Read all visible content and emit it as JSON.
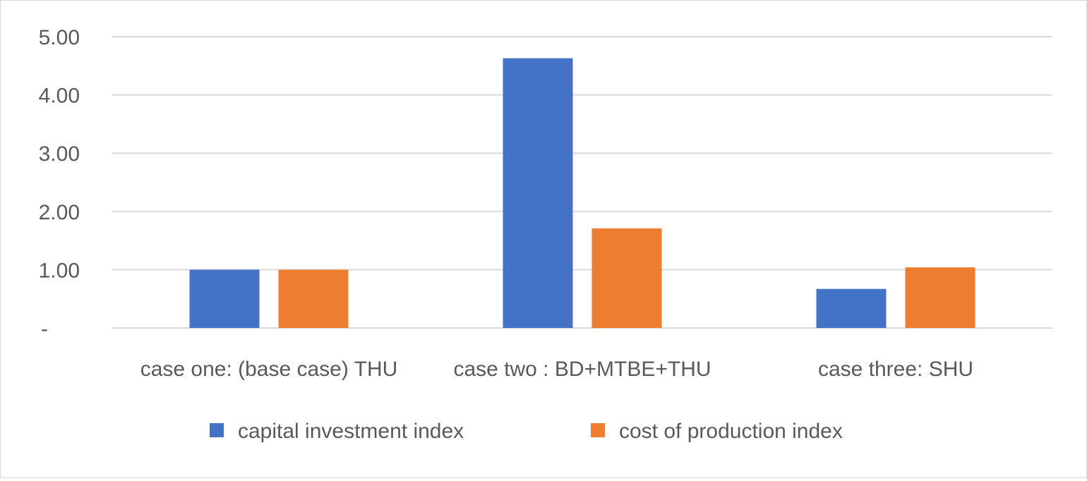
{
  "chart_data": {
    "type": "bar",
    "title": "",
    "xlabel": "",
    "ylabel": "",
    "categories": [
      "case one: (base case) THU",
      "case two : BD+MTBE+THU",
      "case three: SHU"
    ],
    "series": [
      {
        "name": "capital investment index",
        "color": "#4472C4",
        "values": [
          1.0,
          4.63,
          0.67
        ]
      },
      {
        "name": "cost of production index",
        "color": "#ED7D31",
        "values": [
          1.0,
          1.71,
          1.04
        ]
      }
    ],
    "ylim": [
      0,
      5
    ],
    "yticks": [
      0,
      1,
      2,
      3,
      4,
      5
    ],
    "ytick_labels": [
      "-",
      "1.00",
      "2.00",
      "3.00",
      "4.00",
      "5.00"
    ],
    "grid": true,
    "legend_position": "bottom"
  }
}
